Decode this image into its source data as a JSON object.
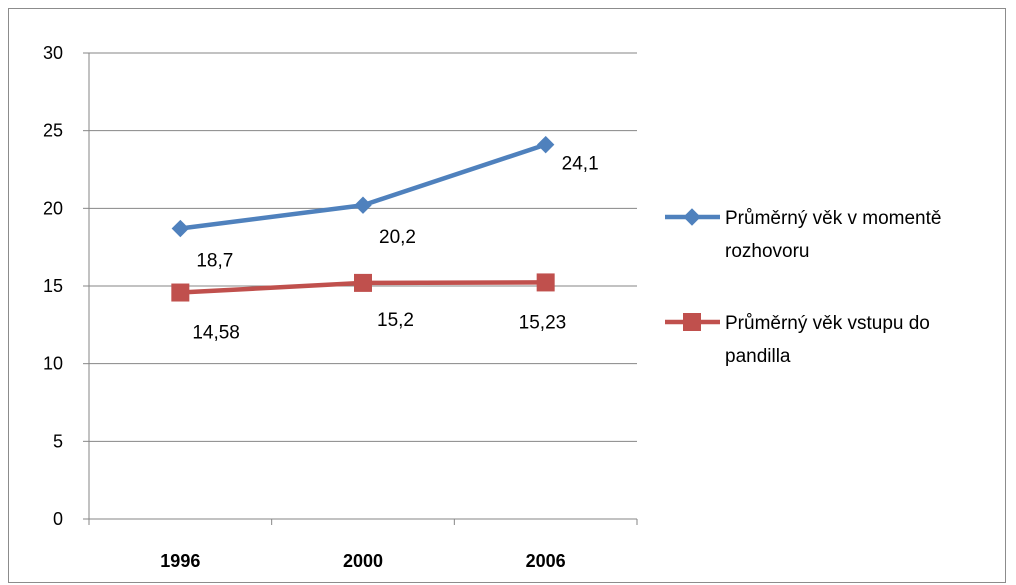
{
  "chart_data": {
    "type": "line",
    "categories": [
      "1996",
      "2000",
      "2006"
    ],
    "series": [
      {
        "name": "Průměrný věk v momentě rozhovoru",
        "legend_lines": [
          "Průměrný věk v momentě",
          "rozhovoru"
        ],
        "values": [
          18.7,
          20.2,
          24.1
        ],
        "labels": [
          "18,7",
          "20,2",
          "24,1"
        ],
        "color": "#4f81bd",
        "marker": "diamond"
      },
      {
        "name": "Průměrný věk vstupu do pandilla",
        "legend_lines": [
          "Průměrný věk vstupu do",
          "pandilla"
        ],
        "values": [
          14.58,
          15.2,
          15.23
        ],
        "labels": [
          "14,58",
          "15,2",
          "15,23"
        ],
        "color": "#c0504d",
        "marker": "square"
      }
    ],
    "ylim": [
      0,
      30
    ],
    "yticks": [
      "0",
      "5",
      "10",
      "15",
      "20",
      "25",
      "30"
    ],
    "grid": true,
    "legend_position": "right"
  }
}
